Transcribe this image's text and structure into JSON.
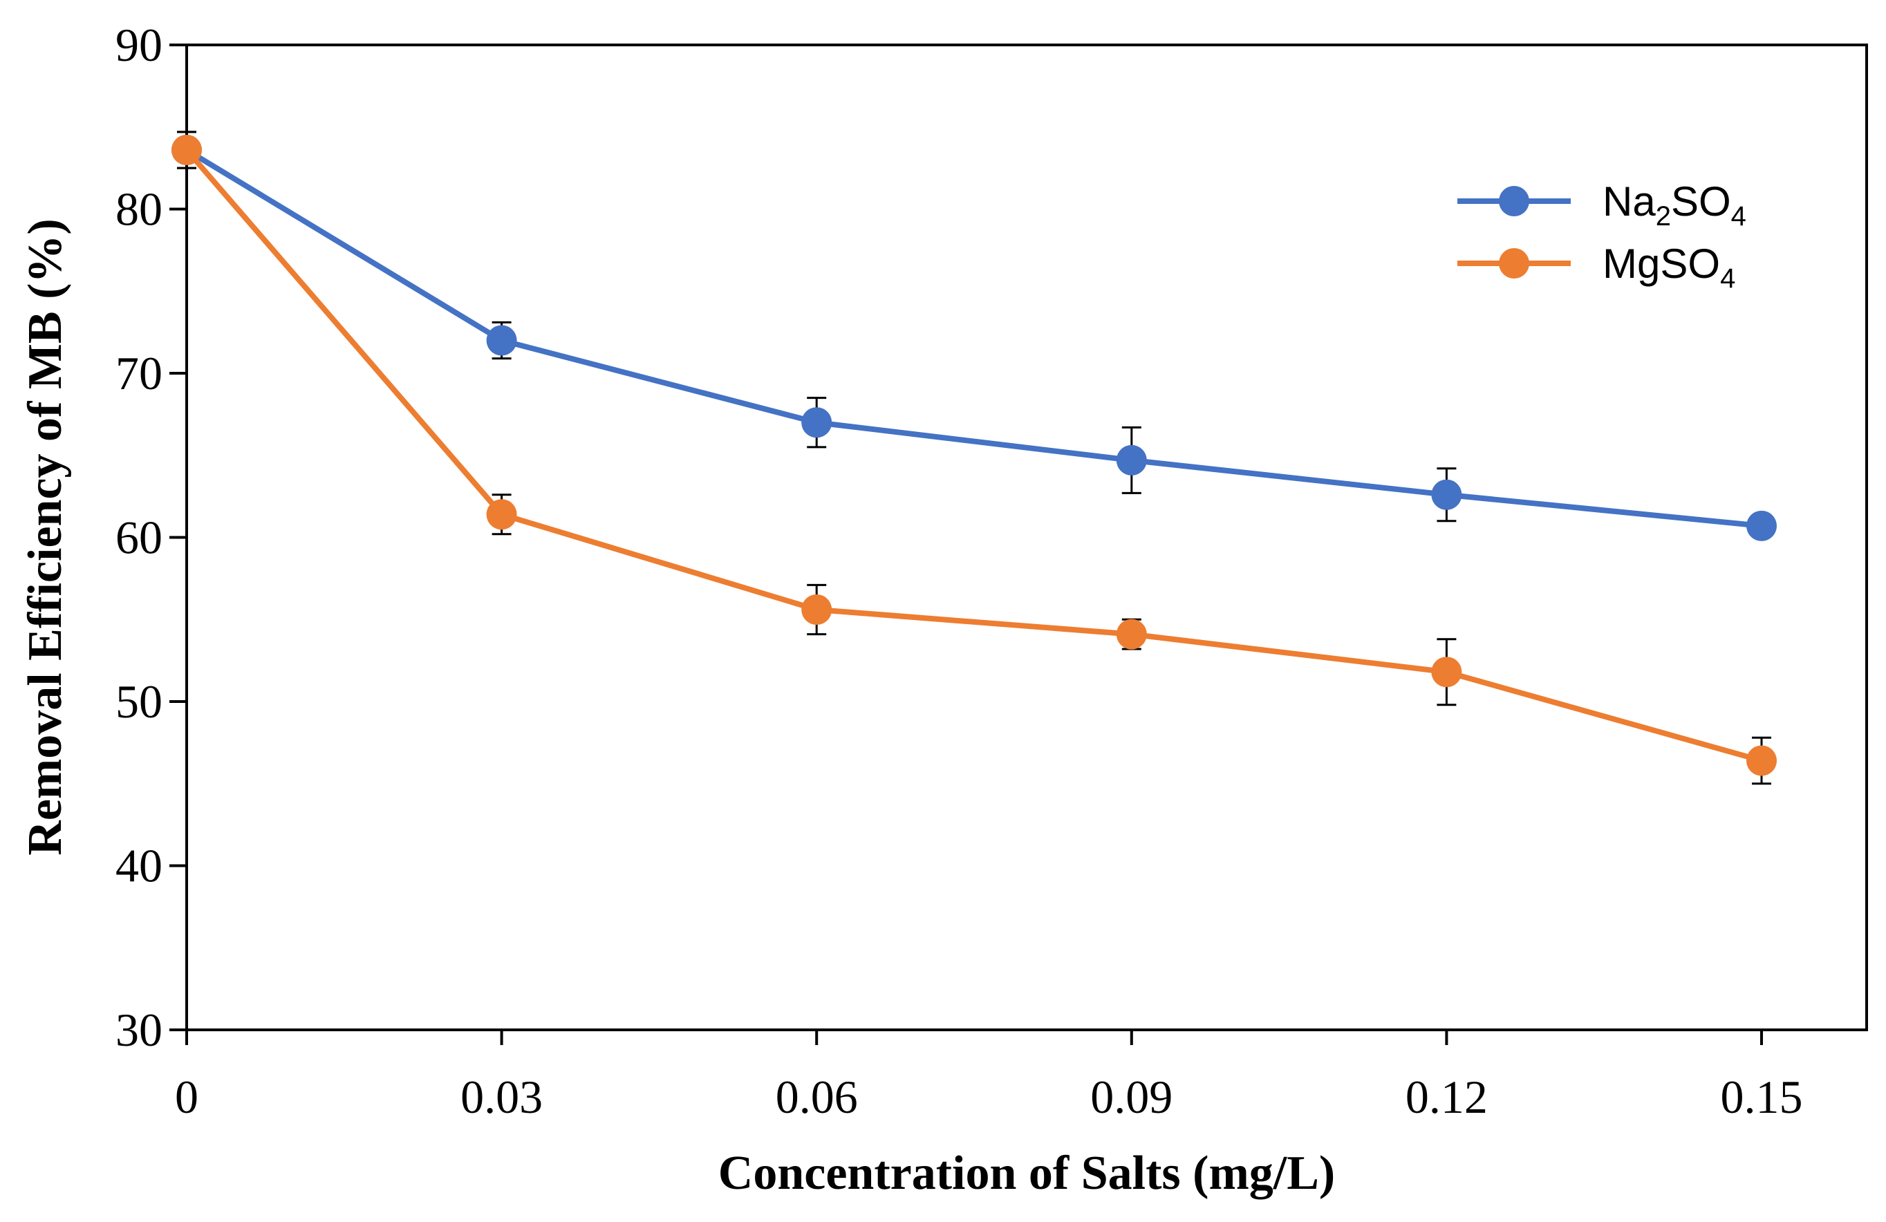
{
  "chart_data": {
    "type": "line",
    "xlabel": "Concentration of Salts (mg/L)",
    "ylabel": "Removal Efficiency of MB (%)",
    "x": [
      0,
      0.03,
      0.06,
      0.09,
      0.12,
      0.15
    ],
    "x_tick_labels": [
      "0",
      "0.03",
      "0.06",
      "0.09",
      "0.12",
      "0.15"
    ],
    "ylim": [
      30,
      90
    ],
    "y_ticks": [
      30,
      40,
      50,
      60,
      70,
      80,
      90
    ],
    "grid": false,
    "legend_position": "top-right",
    "series": [
      {
        "name": "Na2SO4",
        "legend_main": "Na",
        "legend_sub1": "2",
        "legend_mid": "SO",
        "legend_sub2": "4",
        "color": "#4472C4",
        "values": [
          83.6,
          72.0,
          67.0,
          64.7,
          62.6,
          60.7
        ],
        "errors": [
          1.1,
          1.1,
          1.5,
          2.0,
          1.6,
          0.6
        ]
      },
      {
        "name": "MgSO4",
        "legend_main": "Mg",
        "legend_sub1": "",
        "legend_mid": "SO",
        "legend_sub2": "4",
        "color": "#ED7D31",
        "values": [
          83.6,
          61.4,
          55.6,
          54.1,
          51.8,
          46.4
        ],
        "errors": [
          1.1,
          1.2,
          1.5,
          0.9,
          2.0,
          1.4
        ]
      }
    ]
  }
}
